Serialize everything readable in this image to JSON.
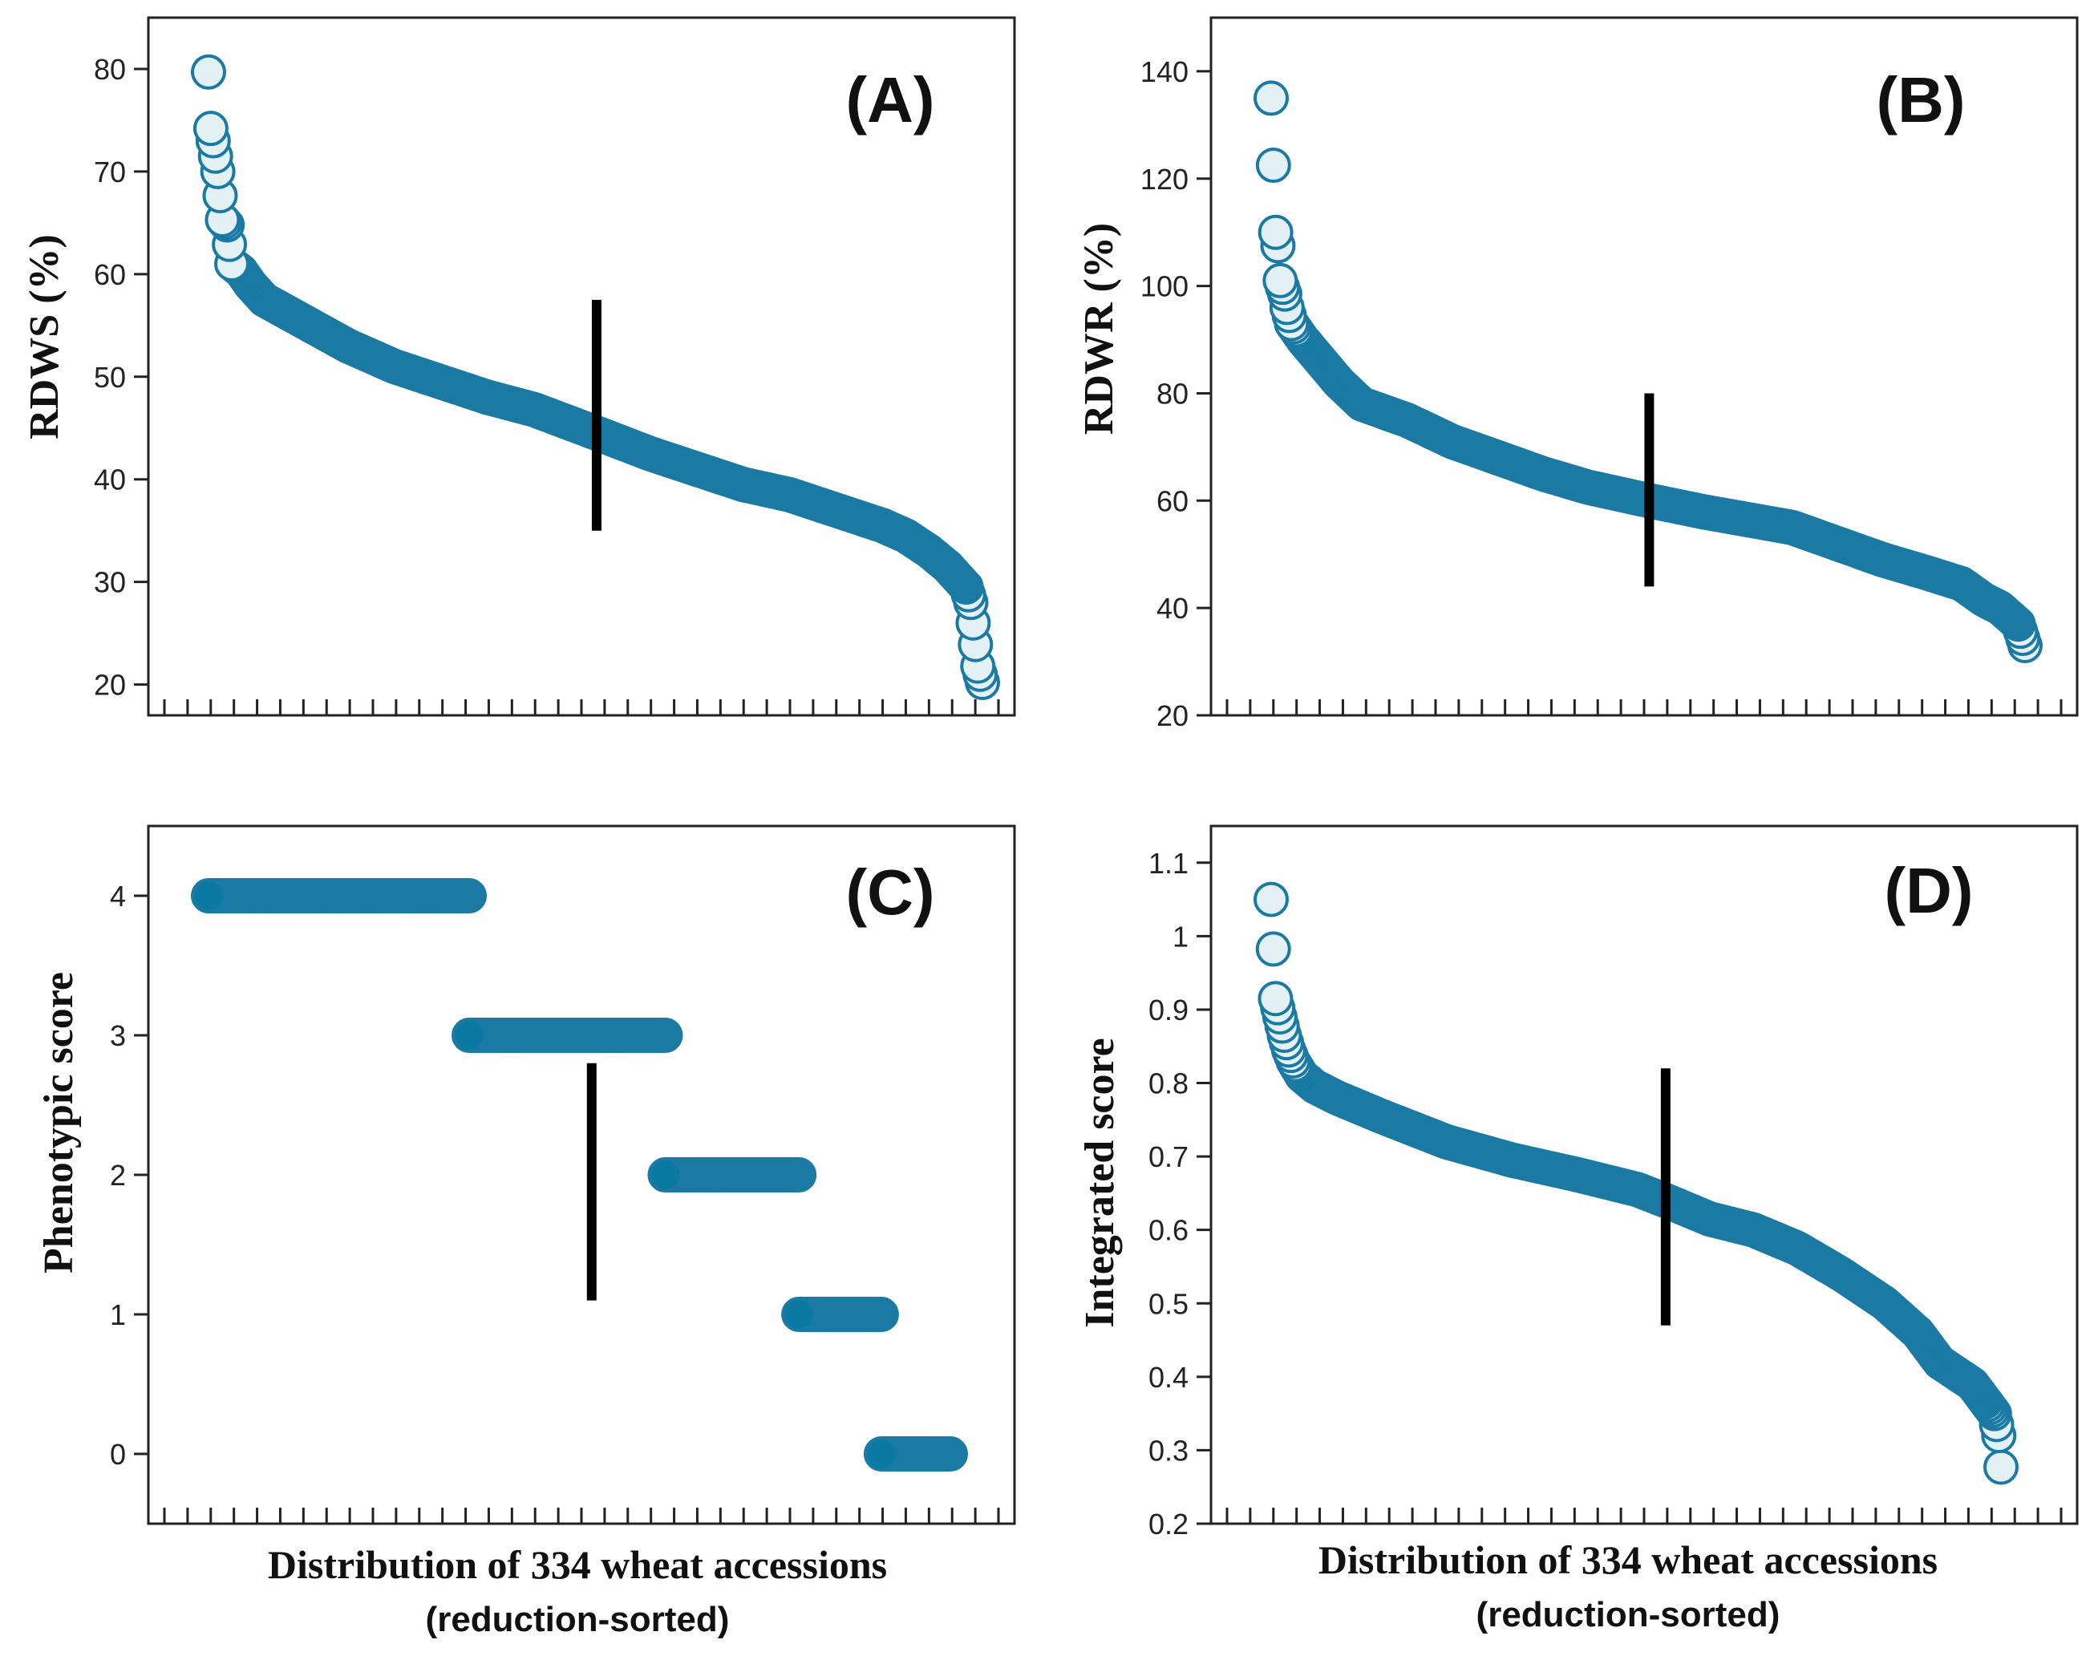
{
  "colors": {
    "marker_fill": "#0a7aa2",
    "marker_edge": "#1a7aa3",
    "highlight_fill": "#e3f1f5",
    "median_bar": "#000000"
  },
  "chart_data": [
    {
      "id": "A",
      "type": "scatter",
      "panel_label": "(A)",
      "ylabel": "RDWS (%)",
      "xlabel": "",
      "xlabel_sub": "",
      "n_points": 334,
      "ylim": [
        17,
        85
      ],
      "yticks": [
        20,
        30,
        40,
        50,
        60,
        70,
        80
      ],
      "median_bar": {
        "x_index": 167,
        "y_range": [
          35,
          57.5
        ]
      },
      "curve": [
        [
          0,
          79.7
        ],
        [
          1,
          74.2
        ],
        [
          2,
          73
        ],
        [
          4,
          70
        ],
        [
          6,
          65.3
        ],
        [
          8,
          64.8
        ],
        [
          10,
          61
        ],
        [
          14,
          60.3
        ],
        [
          18,
          59
        ],
        [
          24,
          57.5
        ],
        [
          40,
          55.5
        ],
        [
          60,
          53
        ],
        [
          80,
          51
        ],
        [
          100,
          49.5
        ],
        [
          120,
          48
        ],
        [
          140,
          46.8
        ],
        [
          167,
          44.5
        ],
        [
          190,
          42.5
        ],
        [
          210,
          41
        ],
        [
          230,
          39.5
        ],
        [
          250,
          38.5
        ],
        [
          270,
          37
        ],
        [
          290,
          35.5
        ],
        [
          300,
          34.5
        ],
        [
          310,
          33
        ],
        [
          318,
          31.5
        ],
        [
          322,
          30.5
        ],
        [
          326,
          29.5
        ],
        [
          328,
          28
        ],
        [
          329,
          26
        ],
        [
          331,
          21.8
        ],
        [
          333,
          20.2
        ]
      ]
    },
    {
      "id": "B",
      "type": "scatter",
      "panel_label": "(B)",
      "ylabel": "RDWR (%)",
      "xlabel": "",
      "xlabel_sub": "",
      "n_points": 334,
      "ylim": [
        20,
        150
      ],
      "yticks": [
        20,
        40,
        60,
        80,
        100,
        120,
        140
      ],
      "median_bar": {
        "x_index": 167,
        "y_range": [
          44,
          80
        ]
      },
      "curve": [
        [
          0,
          135
        ],
        [
          2,
          110
        ],
        [
          3,
          107.5
        ],
        [
          4,
          101
        ],
        [
          6,
          98.5
        ],
        [
          7,
          96
        ],
        [
          9,
          93
        ],
        [
          14,
          90
        ],
        [
          20,
          87
        ],
        [
          30,
          82
        ],
        [
          40,
          78
        ],
        [
          60,
          75
        ],
        [
          80,
          71
        ],
        [
          100,
          68
        ],
        [
          120,
          65
        ],
        [
          140,
          62.5
        ],
        [
          167,
          60
        ],
        [
          190,
          58
        ],
        [
          210,
          56.5
        ],
        [
          230,
          55
        ],
        [
          250,
          52
        ],
        [
          270,
          49
        ],
        [
          290,
          46.5
        ],
        [
          305,
          44.5
        ],
        [
          315,
          41.5
        ],
        [
          322,
          40
        ],
        [
          326,
          38.5
        ],
        [
          330,
          37
        ],
        [
          333,
          33
        ]
      ]
    },
    {
      "id": "C",
      "type": "scatter",
      "panel_label": "(C)",
      "ylabel": "Phenotypic score",
      "xlabel": "Distribution of 334 wheat accessions",
      "xlabel_sub": "(reduction-sorted)",
      "n_points": 334,
      "ylim": [
        -0.5,
        4.5
      ],
      "yticks": [
        0,
        1,
        2,
        3,
        4
      ],
      "median_bar": {
        "x_index": 172,
        "y_range": [
          1.1,
          2.8
        ]
      },
      "groups": [
        {
          "score": 4,
          "x_start": 0,
          "x_end": 117
        },
        {
          "score": 3,
          "x_start": 117,
          "x_end": 205
        },
        {
          "score": 2,
          "x_start": 205,
          "x_end": 265
        },
        {
          "score": 1,
          "x_start": 265,
          "x_end": 302
        },
        {
          "score": 0,
          "x_start": 302,
          "x_end": 333
        }
      ]
    },
    {
      "id": "D",
      "type": "scatter",
      "panel_label": "(D)",
      "ylabel": "Integrated score",
      "xlabel": "Distribution of 334 wheat accessions",
      "xlabel_sub": "(reduction-sorted)",
      "n_points": 334,
      "ylim": [
        0.2,
        1.15
      ],
      "yticks": [
        0.2,
        0.3,
        0.4,
        0.5,
        0.6,
        0.7,
        0.8,
        0.9,
        1.0,
        1.1
      ],
      "median_bar": {
        "x_index": 180,
        "y_range": [
          0.47,
          0.82
        ]
      },
      "curve": [
        [
          0,
          1.05
        ],
        [
          2,
          0.915
        ],
        [
          4,
          0.89
        ],
        [
          6,
          0.865
        ],
        [
          8,
          0.845
        ],
        [
          10,
          0.83
        ],
        [
          14,
          0.81
        ],
        [
          20,
          0.795
        ],
        [
          30,
          0.78
        ],
        [
          50,
          0.755
        ],
        [
          80,
          0.72
        ],
        [
          110,
          0.695
        ],
        [
          140,
          0.675
        ],
        [
          167,
          0.655
        ],
        [
          180,
          0.64
        ],
        [
          200,
          0.615
        ],
        [
          220,
          0.6
        ],
        [
          240,
          0.575
        ],
        [
          260,
          0.54
        ],
        [
          280,
          0.5
        ],
        [
          295,
          0.46
        ],
        [
          300,
          0.44
        ],
        [
          305,
          0.42
        ],
        [
          315,
          0.4
        ],
        [
          320,
          0.39
        ],
        [
          325,
          0.37
        ],
        [
          330,
          0.35
        ],
        [
          332,
          0.32
        ],
        [
          333,
          0.277
        ]
      ]
    }
  ]
}
